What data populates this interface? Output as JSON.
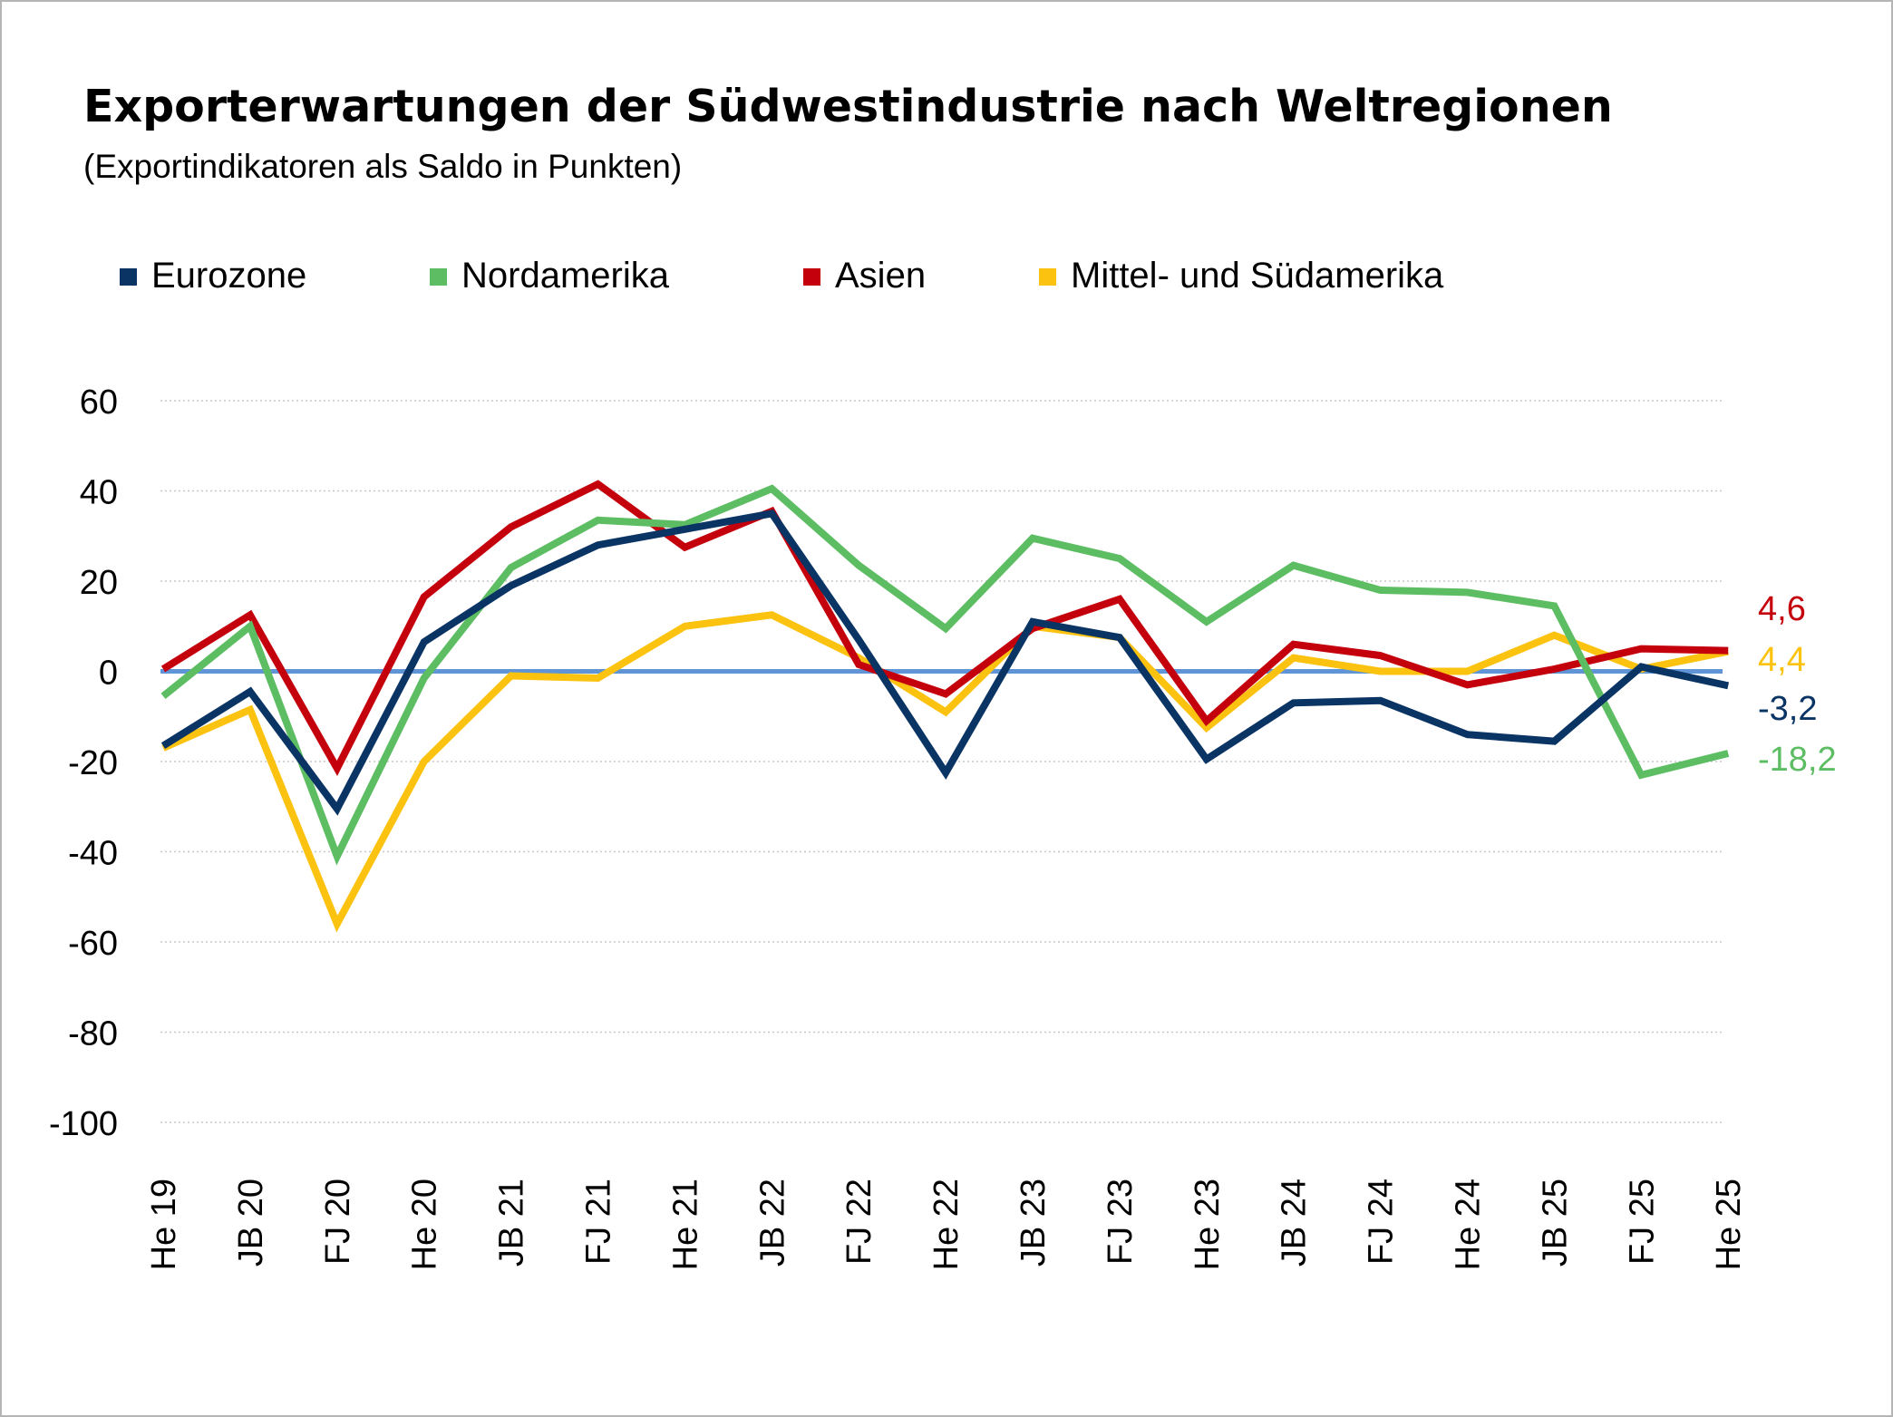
{
  "colors": {
    "eurozone": "#0a3464",
    "nordamerika": "#5cbd62",
    "asien": "#c5000d",
    "mittel_suedamerika": "#fbc20f",
    "zero_line": "#5f94d6",
    "grid": "#c8c8c8"
  },
  "chart_data": {
    "type": "line",
    "title": "Exporterwartungen der Südwestindustrie nach Weltregionen",
    "subtitle": "(Exportindikatoren als Saldo in Punkten)",
    "xlabel": "",
    "ylabel": "",
    "ylim": [
      -100,
      60
    ],
    "yticks": [
      "60",
      "40",
      "20",
      "0",
      "-20",
      "-40",
      "-60",
      "-80",
      "-100"
    ],
    "grid": true,
    "legend_position": "top",
    "categories": [
      "He 19",
      "JB 20",
      "FJ 20",
      "He 20",
      "JB 21",
      "FJ 21",
      "He 21",
      "JB 22",
      "FJ 22",
      "He 22",
      "JB 23",
      "FJ 23",
      "He 23",
      "JB 24",
      "FJ 24",
      "He 24",
      "JB 25",
      "FJ 25",
      "He 25"
    ],
    "series": [
      {
        "name": "Mittel- und Südamerika",
        "color_key": "mittel_suedamerika",
        "values": [
          -17,
          -8.5,
          -56,
          -20,
          -1,
          -1.5,
          10,
          12.5,
          3,
          -9,
          10,
          7.5,
          -12.5,
          3,
          0,
          0,
          8,
          0.5,
          4.4
        ],
        "end_label": "4,4"
      },
      {
        "name": "Asien",
        "color_key": "asien",
        "values": [
          0.5,
          12.5,
          -21.5,
          16.5,
          32,
          41.5,
          27.5,
          35.5,
          1.5,
          -5,
          9.5,
          16,
          -11,
          6,
          3.5,
          -3,
          0.5,
          5,
          4.6
        ],
        "end_label": "4,6"
      },
      {
        "name": "Nordamerika",
        "color_key": "nordamerika",
        "values": [
          -5.5,
          10,
          -41,
          -1.5,
          23,
          33.5,
          32.5,
          40.5,
          23.5,
          9.5,
          29.5,
          25,
          11,
          23.5,
          18,
          17.5,
          14.5,
          -23,
          -18.2
        ],
        "end_label": "-18,2"
      },
      {
        "name": "Eurozone",
        "color_key": "eurozone",
        "values": [
          -16.5,
          -4.5,
          -30.5,
          6.5,
          19,
          28,
          31.5,
          35,
          7,
          -22.5,
          11,
          7.5,
          -19.5,
          -7,
          -6.5,
          -14,
          -15.5,
          1,
          -3.2
        ],
        "end_label": "-3,2"
      }
    ],
    "legend": [
      "Eurozone",
      "Nordamerika",
      "Asien",
      "Mittel- und Südamerika"
    ]
  }
}
